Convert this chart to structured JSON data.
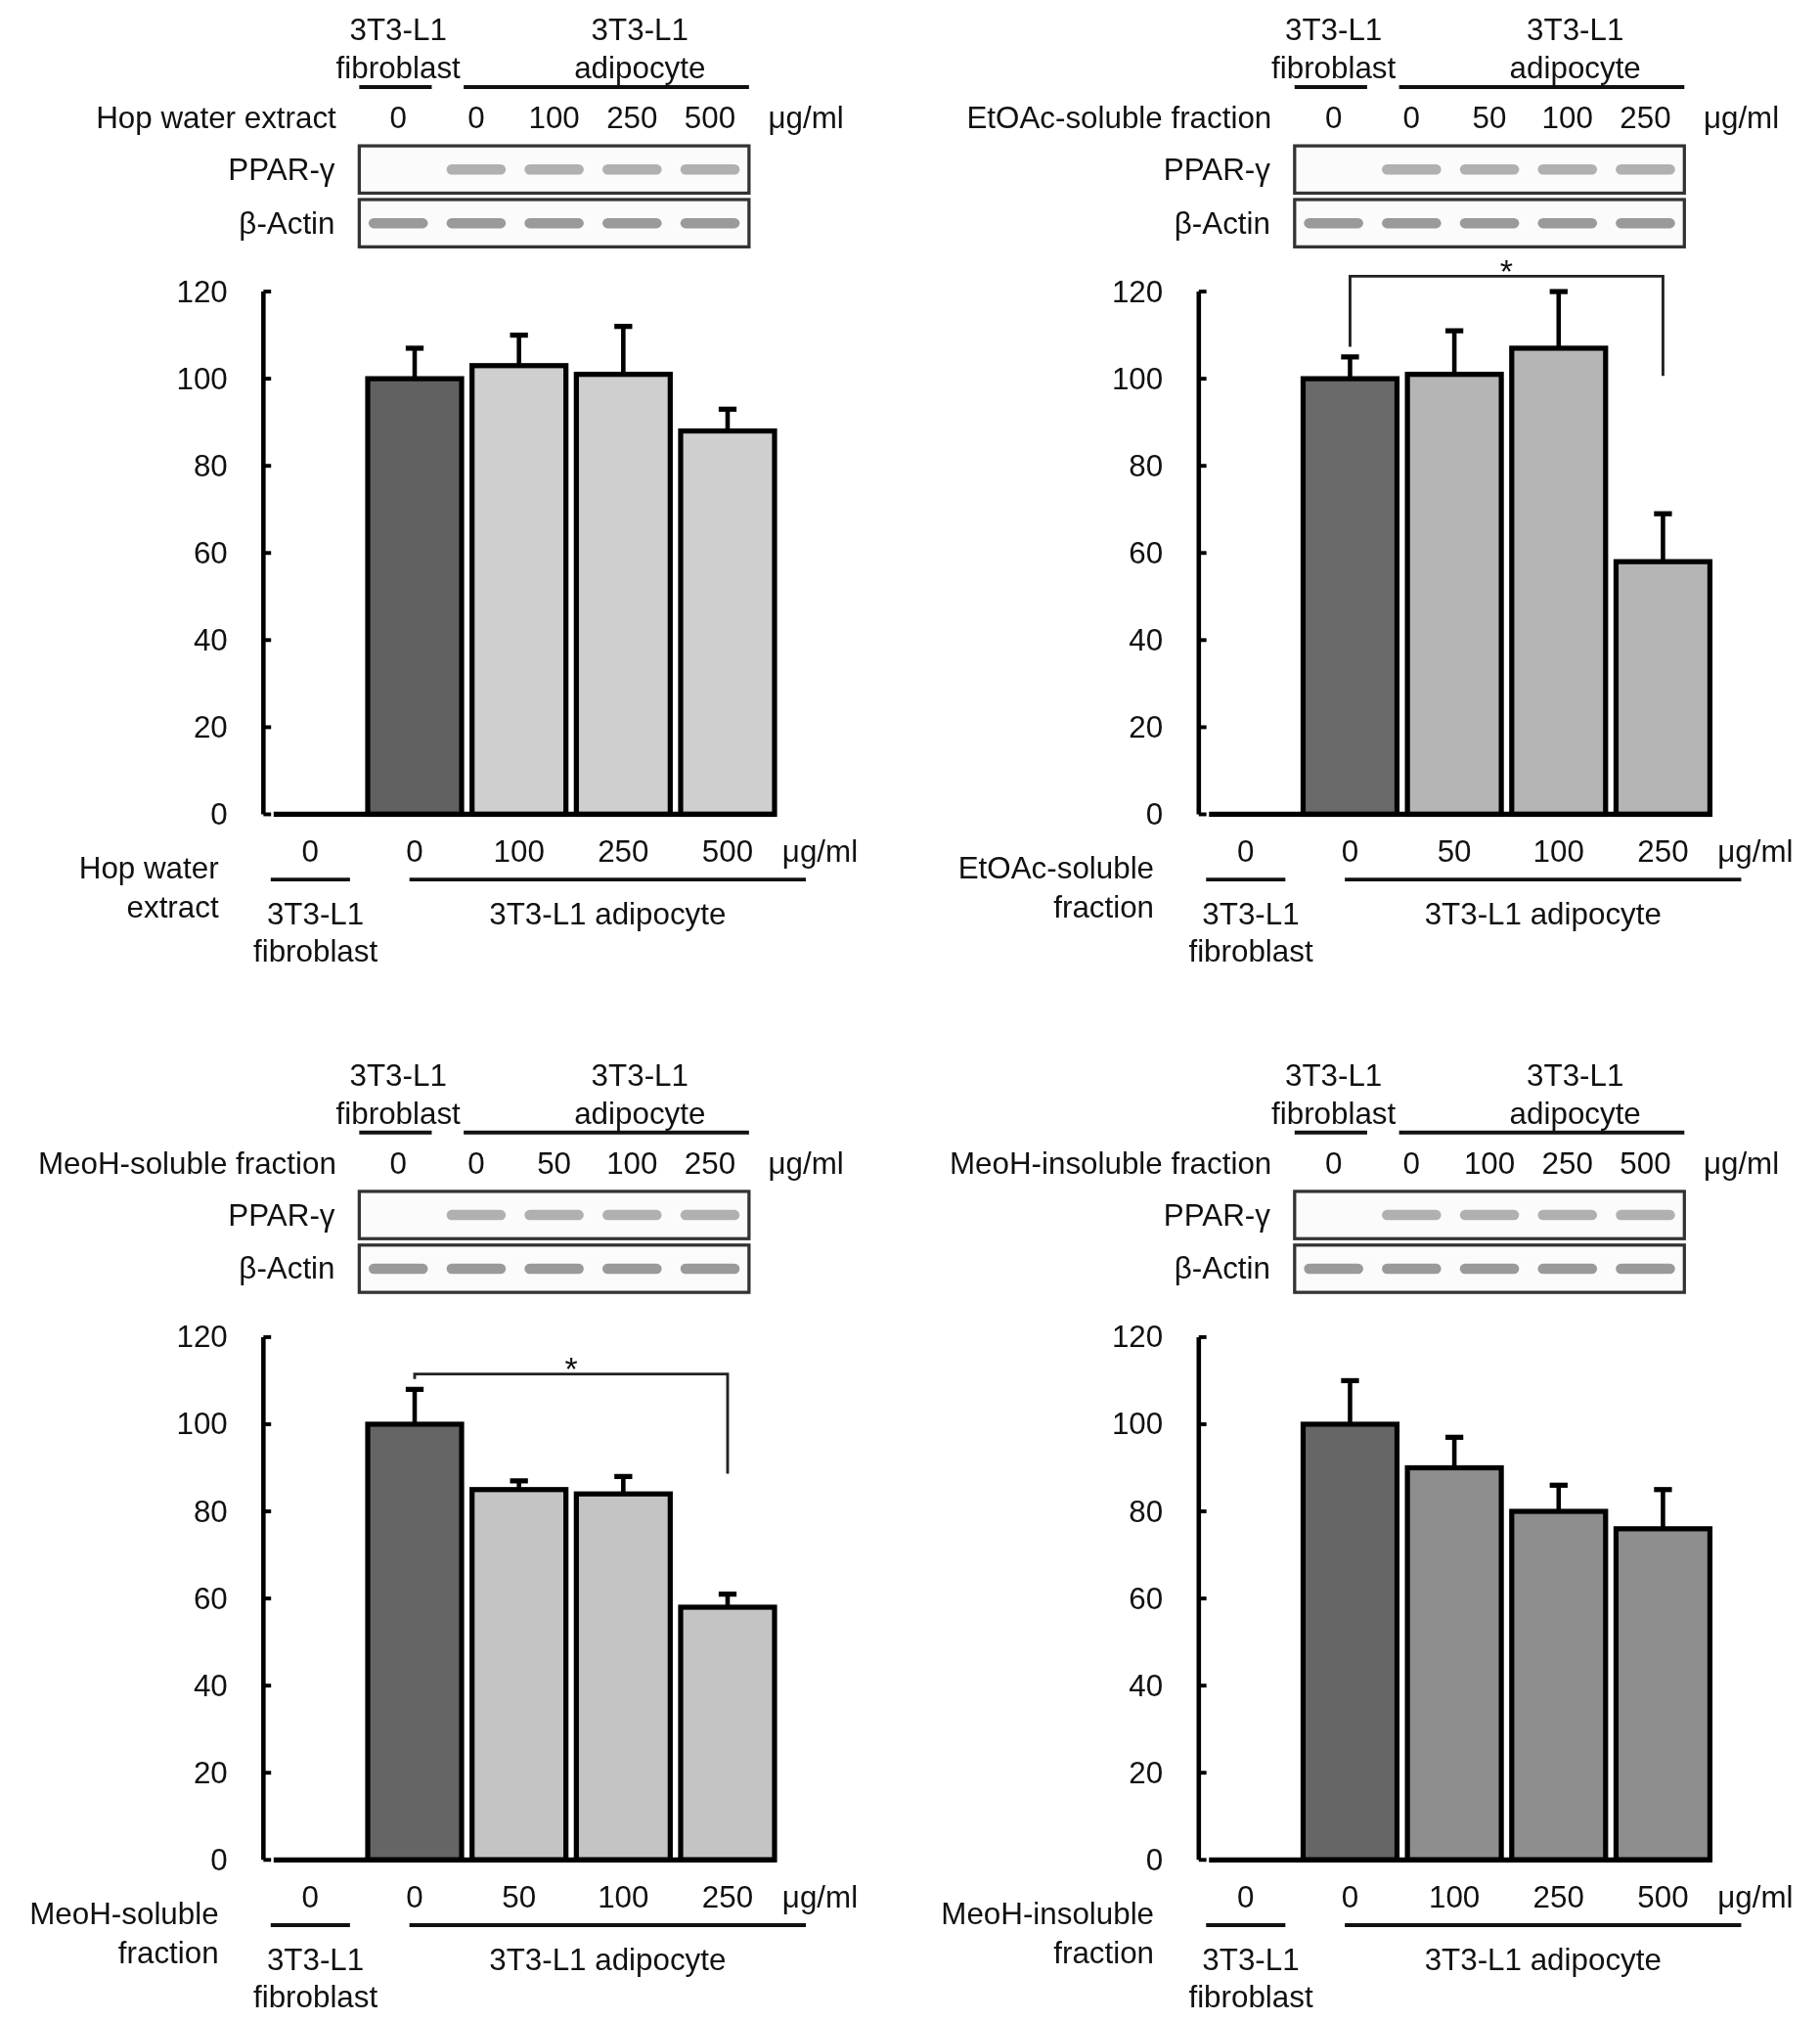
{
  "chart_data": [
    {
      "type": "bar",
      "xlabel": "Hop water extract",
      "categories": [
        "0",
        "0",
        "100",
        "250",
        "500"
      ],
      "values": [
        null,
        100,
        103,
        101,
        88
      ],
      "errors": [
        null,
        7,
        7,
        11,
        5
      ],
      "colors": [
        null,
        "#616161",
        "#cfcfcf",
        "#cfcfcf",
        "#cfcfcf"
      ],
      "ylim": [
        0,
        120
      ],
      "yticks": [
        0,
        20,
        40,
        60,
        80,
        100,
        120
      ],
      "annotations": [
        "3T3-L1 fibroblast",
        "3T3-L1 adipocyte",
        "μg/ml",
        "PPAR-γ",
        "β-Actin"
      ]
    },
    {
      "type": "bar",
      "xlabel": "EtOAc-soluble fraction",
      "categories": [
        "0",
        "0",
        "50",
        "100",
        "250"
      ],
      "values": [
        null,
        100,
        101,
        107,
        58
      ],
      "errors": [
        null,
        5,
        10,
        13,
        11
      ],
      "colors": [
        null,
        "#6a6a6a",
        "#b5b5b5",
        "#b5b5b5",
        "#b5b5b5"
      ],
      "ylim": [
        0,
        120
      ],
      "yticks": [
        0,
        20,
        40,
        60,
        80,
        100,
        120
      ],
      "annotations": [
        "3T3-L1 fibroblast",
        "3T3-L1 adipocyte",
        "μg/ml",
        "PPAR-γ",
        "β-Actin",
        "*"
      ]
    },
    {
      "type": "bar",
      "xlabel": "MeoH-soluble fraction",
      "categories": [
        "0",
        "0",
        "50",
        "100",
        "250"
      ],
      "values": [
        null,
        100,
        85,
        84,
        58
      ],
      "errors": [
        null,
        8,
        2,
        4,
        3
      ],
      "colors": [
        null,
        "#656565",
        "#c4c4c4",
        "#c4c4c4",
        "#c4c4c4"
      ],
      "ylim": [
        0,
        120
      ],
      "yticks": [
        0,
        20,
        40,
        60,
        80,
        100,
        120
      ],
      "annotations": [
        "3T3-L1 fibroblast",
        "3T3-L1 adipocyte",
        "μg/ml",
        "PPAR-γ",
        "β-Actin",
        "*"
      ]
    },
    {
      "type": "bar",
      "xlabel": "MeoH-insoluble fraction",
      "categories": [
        "0",
        "0",
        "100",
        "250",
        "500"
      ],
      "values": [
        null,
        100,
        90,
        80,
        76
      ],
      "errors": [
        null,
        10,
        7,
        6,
        9
      ],
      "colors": [
        null,
        "#666666",
        "#8e8e8e",
        "#8e8e8e",
        "#8e8e8e"
      ],
      "ylim": [
        0,
        120
      ],
      "yticks": [
        0,
        20,
        40,
        60,
        80,
        100,
        120
      ],
      "annotations": [
        "3T3-L1 fibroblast",
        "3T3-L1 adipocyte",
        "μg/ml",
        "PPAR-γ",
        "β-Actin"
      ]
    }
  ]
}
